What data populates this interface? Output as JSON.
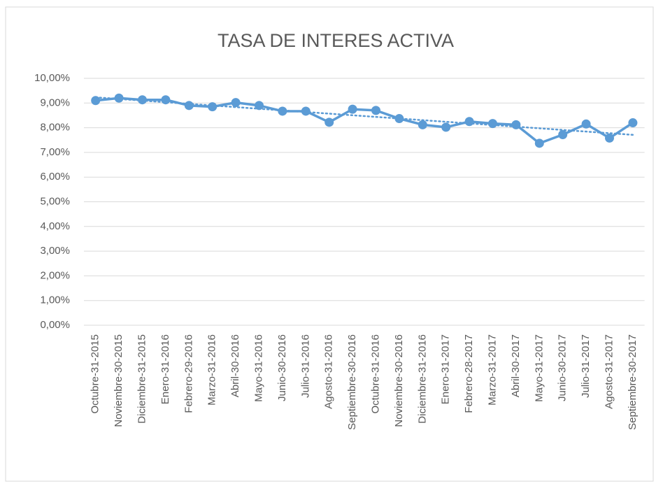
{
  "chart_data": {
    "type": "line",
    "title": "TASA DE INTERES ACTIVA",
    "categories": [
      "Octubre-31-2015",
      "Noviembre-30-2015",
      "Diciembre-31-2015",
      "Enero-31-2016",
      "Febrero-29-2016",
      "Marzo-31-2016",
      "Abril-30-2016",
      "Mayo-31-2016",
      "Junio-30-2016",
      "Julio-31-2016",
      "Agosto-31-2016",
      "Septiembre-30-2016",
      "Octubre-31-2016",
      "Noviembre-30-2016",
      "Diciembre-31-2016",
      "Enero-31-2017",
      "Febrero-28-2017",
      "Marzo-31-2017",
      "Abril-30-2017",
      "Mayo-31-2017",
      "Junio-30-2017",
      "Julio-31-2017",
      "Agosto-31-2017",
      "Septiembre-30-2017"
    ],
    "series": [
      {
        "color": "#5b9bd5",
        "values": [
          9.1,
          9.2,
          9.13,
          9.13,
          8.9,
          8.85,
          9.02,
          8.9,
          8.67,
          8.67,
          8.22,
          8.75,
          8.7,
          8.37,
          8.12,
          8.02,
          8.25,
          8.17,
          8.12,
          7.37,
          7.72,
          8.15,
          7.58,
          8.2
        ]
      }
    ],
    "ylim": [
      0,
      10
    ],
    "yticks": [
      {
        "value": 0,
        "label": "0,00%"
      },
      {
        "value": 1,
        "label": "1,00%"
      },
      {
        "value": 2,
        "label": "2,00%"
      },
      {
        "value": 3,
        "label": "3,00%"
      },
      {
        "value": 4,
        "label": "4,00%"
      },
      {
        "value": 5,
        "label": "5,00%"
      },
      {
        "value": 6,
        "label": "6,00%"
      },
      {
        "value": 7,
        "label": "7,00%"
      },
      {
        "value": 8,
        "label": "8,00%"
      },
      {
        "value": 9,
        "label": "9,00%"
      },
      {
        "value": 10,
        "label": "10,00%"
      }
    ],
    "grid": true,
    "trendline": "linear"
  }
}
